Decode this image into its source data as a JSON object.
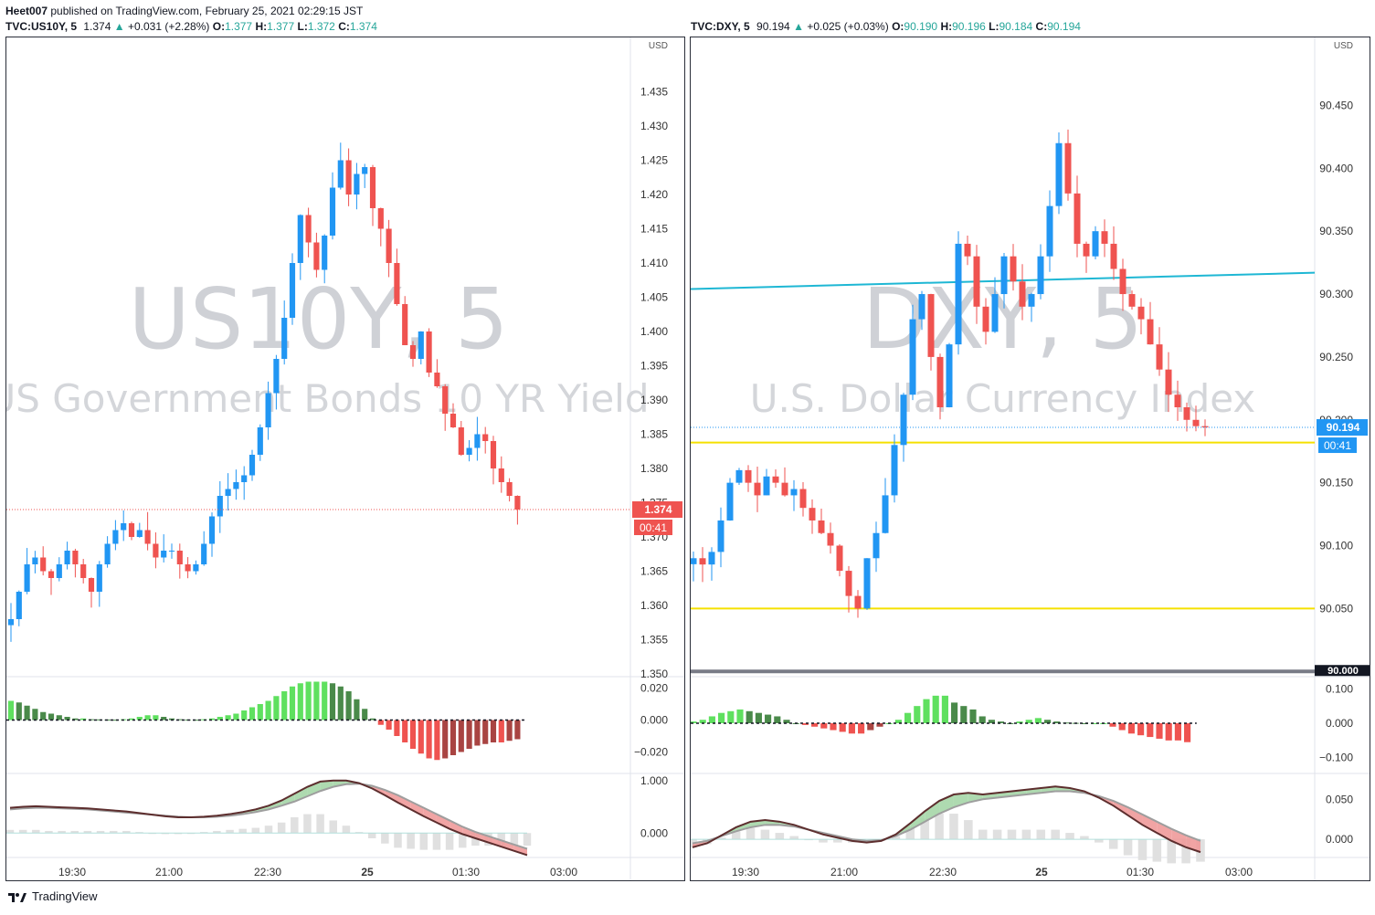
{
  "header": {
    "author": "Heet007",
    "published_text": " published on TradingView.com, February 25, 2021 02:29:15 JST"
  },
  "footer": {
    "brand": "TradingView"
  },
  "colors": {
    "up": "#2196f3",
    "down": "#ef5350",
    "hist_up_strong": "#4caf50",
    "hist_up_weak": "#66bb6a",
    "hist_down_strong": "#ef5350",
    "hist_down_weak": "#a94442",
    "cyan_line": "#1eb7d4",
    "yellow_line": "#f5e000",
    "macd_fill_up": "#a5d6a7",
    "macd_fill_down": "#ef9a9a"
  },
  "left": {
    "symbol": "TVC:US10Y, 5",
    "price": "1.374",
    "change": "+0.031 (+2.28%)",
    "open_label": "O:",
    "open": "1.377",
    "high_label": "H:",
    "high": "1.377",
    "low_label": "L:",
    "low": "1.372",
    "close_label": "C:",
    "close": "1.374",
    "watermark_big": "US10Y, 5",
    "watermark_small": "US Government Bonds 10 YR Yield",
    "currency": "USD",
    "last_price_tag": "1.374",
    "countdown": "00:41"
  },
  "right": {
    "symbol": "TVC:DXY, 5",
    "price": "90.194",
    "change": "+0.025 (+0.03%)",
    "open_label": "O:",
    "open": "90.190",
    "high_label": "H:",
    "high": "90.196",
    "low_label": "L:",
    "low": "90.184",
    "close_label": "C:",
    "close": "90.194",
    "watermark_big": "DXY, 5",
    "watermark_small": "U.S. Dollar Currency Index",
    "currency": "USD",
    "last_price_tag": "90.194",
    "countdown": "00:41",
    "round_tag": "90.000"
  },
  "chart_data": [
    {
      "type": "candlestick",
      "title": "TVC:US10Y, 5",
      "ylabel": "USD",
      "ylim": [
        1.35,
        1.438
      ],
      "y_ticks": [
        "1.435",
        "1.430",
        "1.425",
        "1.420",
        "1.415",
        "1.410",
        "1.405",
        "1.400",
        "1.395",
        "1.390",
        "1.385",
        "1.380",
        "1.375",
        "1.370",
        "1.365",
        "1.360",
        "1.355",
        "1.350"
      ],
      "x_ticks": [
        "19:30",
        "21:00",
        "22:30",
        "25",
        "01:30",
        "03:00"
      ],
      "close_series": [
        1.358,
        1.362,
        1.366,
        1.367,
        1.365,
        1.364,
        1.366,
        1.368,
        1.366,
        1.364,
        1.362,
        1.366,
        1.369,
        1.371,
        1.372,
        1.37,
        1.371,
        1.369,
        1.367,
        1.368,
        1.368,
        1.366,
        1.365,
        1.366,
        1.369,
        1.373,
        1.376,
        1.377,
        1.378,
        1.379,
        1.382,
        1.386,
        1.391,
        1.396,
        1.402,
        1.41,
        1.417,
        1.413,
        1.409,
        1.414,
        1.421,
        1.425,
        1.42,
        1.423,
        1.424,
        1.418,
        1.415,
        1.41,
        1.404,
        1.398,
        1.396,
        1.4,
        1.394,
        1.392,
        1.388,
        1.386,
        1.382,
        1.383,
        1.385,
        1.384,
        1.38,
        1.378,
        1.376,
        1.374
      ],
      "histogram": {
        "ylim": [
          -0.03,
          0.026
        ],
        "y_ticks": [
          "0.020",
          "0.000",
          "−0.020"
        ],
        "values": [
          0.012,
          0.011,
          0.009,
          0.007,
          0.005,
          0.004,
          0.003,
          0.002,
          0.001,
          0.001,
          0.0005,
          0.0004,
          0.0003,
          0.0002,
          0.0005,
          0.001,
          0.002,
          0.003,
          0.003,
          0.002,
          0.001,
          0.0005,
          0.0003,
          0.0002,
          0.0005,
          0.001,
          0.002,
          0.003,
          0.004,
          0.006,
          0.008,
          0.01,
          0.012,
          0.015,
          0.018,
          0.021,
          0.023,
          0.024,
          0.024,
          0.024,
          0.023,
          0.021,
          0.018,
          0.013,
          0.007,
          0.001,
          -0.003,
          -0.006,
          -0.01,
          -0.014,
          -0.018,
          -0.021,
          -0.024,
          -0.025,
          -0.024,
          -0.022,
          -0.02,
          -0.018,
          -0.016,
          -0.015,
          -0.014,
          -0.014,
          -0.013,
          -0.012
        ]
      },
      "oscillator": {
        "ylim": [
          -0.5,
          1.1
        ],
        "y_ticks": [
          "1.000",
          "0.000"
        ],
        "fast": [
          0.48,
          0.5,
          0.51,
          0.5,
          0.49,
          0.48,
          0.47,
          0.45,
          0.43,
          0.41,
          0.38,
          0.35,
          0.32,
          0.3,
          0.3,
          0.31,
          0.33,
          0.36,
          0.4,
          0.45,
          0.52,
          0.62,
          0.75,
          0.88,
          0.98,
          1.0,
          1.0,
          0.95,
          0.85,
          0.72,
          0.58,
          0.45,
          0.32,
          0.2,
          0.08,
          -0.02,
          -0.1,
          -0.18,
          -0.26,
          -0.34,
          -0.42
        ],
        "slow": [
          0.45,
          0.47,
          0.48,
          0.48,
          0.47,
          0.46,
          0.45,
          0.43,
          0.41,
          0.39,
          0.37,
          0.35,
          0.33,
          0.31,
          0.3,
          0.3,
          0.31,
          0.33,
          0.36,
          0.4,
          0.45,
          0.52,
          0.6,
          0.7,
          0.8,
          0.88,
          0.93,
          0.94,
          0.9,
          0.82,
          0.72,
          0.6,
          0.48,
          0.36,
          0.24,
          0.12,
          0.02,
          -0.06,
          -0.14,
          -0.22,
          -0.3
        ]
      }
    },
    {
      "type": "candlestick",
      "title": "TVC:DXY, 5",
      "ylabel": "USD",
      "ylim": [
        89.998,
        90.475
      ],
      "y_ticks": [
        "90.450",
        "90.400",
        "90.350",
        "90.300",
        "90.250",
        "90.200",
        "90.150",
        "90.100",
        "90.050",
        "90.000"
      ],
      "x_ticks": [
        "19:30",
        "21:00",
        "22:30",
        "25",
        "01:30",
        "03:00"
      ],
      "hlines": [
        90.182,
        90.05
      ],
      "trendline": [
        90.304,
        90.317
      ],
      "close_series": [
        90.09,
        90.085,
        90.095,
        90.12,
        90.15,
        90.16,
        90.15,
        90.14,
        90.155,
        90.15,
        90.14,
        90.145,
        90.13,
        90.12,
        90.11,
        90.1,
        90.08,
        90.06,
        90.05,
        90.09,
        90.11,
        90.14,
        90.18,
        90.22,
        90.28,
        90.3,
        90.25,
        90.21,
        90.26,
        90.34,
        90.33,
        90.29,
        90.27,
        90.3,
        90.33,
        90.31,
        90.29,
        90.3,
        90.33,
        90.37,
        90.42,
        90.38,
        90.34,
        90.33,
        90.35,
        90.34,
        90.32,
        90.3,
        90.29,
        90.28,
        90.26,
        90.24,
        90.22,
        90.21,
        90.2,
        90.195,
        90.194
      ],
      "histogram": {
        "ylim": [
          -0.13,
          0.13
        ],
        "y_ticks": [
          "0.100",
          "0.000",
          "−0.100"
        ],
        "values": [
          0.005,
          0.01,
          0.02,
          0.03,
          0.035,
          0.04,
          0.035,
          0.03,
          0.025,
          0.02,
          0.01,
          0.0,
          -0.005,
          -0.01,
          -0.015,
          -0.02,
          -0.025,
          -0.03,
          -0.03,
          -0.02,
          -0.01,
          0.0,
          0.01,
          0.03,
          0.05,
          0.07,
          0.08,
          0.08,
          0.06,
          0.05,
          0.04,
          0.02,
          0.01,
          0.005,
          0.0,
          0.005,
          0.01,
          0.015,
          0.01,
          0.005,
          0.002,
          0.001,
          0.0,
          0.0,
          0.0,
          -0.01,
          -0.02,
          -0.03,
          -0.035,
          -0.04,
          -0.045,
          -0.05,
          -0.05,
          -0.055
        ]
      },
      "oscillator": {
        "ylim": [
          -0.025,
          0.08
        ],
        "y_ticks": [
          "0.050",
          "0.000"
        ],
        "fast": [
          -0.01,
          -0.005,
          0.005,
          0.015,
          0.022,
          0.024,
          0.022,
          0.018,
          0.012,
          0.006,
          0.002,
          -0.002,
          -0.004,
          -0.002,
          0.006,
          0.02,
          0.035,
          0.048,
          0.056,
          0.058,
          0.056,
          0.058,
          0.06,
          0.062,
          0.064,
          0.066,
          0.064,
          0.06,
          0.052,
          0.042,
          0.03,
          0.018,
          0.008,
          -0.002,
          -0.01,
          -0.016
        ],
        "slow": [
          -0.005,
          -0.002,
          0.004,
          0.01,
          0.015,
          0.018,
          0.018,
          0.016,
          0.012,
          0.008,
          0.004,
          0.0,
          -0.002,
          -0.001,
          0.004,
          0.012,
          0.022,
          0.032,
          0.04,
          0.046,
          0.05,
          0.052,
          0.054,
          0.056,
          0.058,
          0.06,
          0.06,
          0.058,
          0.054,
          0.048,
          0.04,
          0.031,
          0.022,
          0.013,
          0.005,
          -0.002
        ]
      }
    }
  ]
}
